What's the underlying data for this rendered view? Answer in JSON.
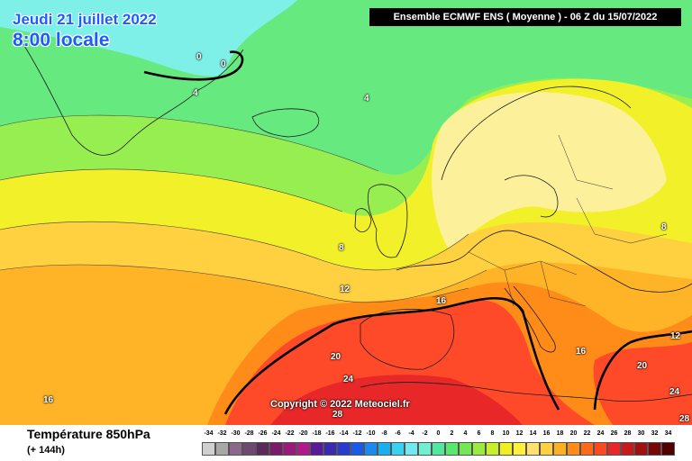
{
  "header": {
    "date_line": "Jeudi 21 juillet 2022",
    "time_line": "8:00 locale",
    "model_run": "Ensemble ECMWF ENS  ( Moyenne )  -  06 Z du 15/07/2022"
  },
  "map": {
    "isotherm_labels": [
      "0",
      "0",
      "4",
      "4",
      "8",
      "8",
      "12",
      "12",
      "16",
      "16",
      "16",
      "20",
      "20",
      "24",
      "24",
      "28",
      "28"
    ],
    "copyright": "Copyright © 2022 Meteociel.fr"
  },
  "footer": {
    "variable": "Température 850hPa",
    "lead_time": "(+ 144h)"
  },
  "legend": {
    "ticks": [
      "-34",
      "-32",
      "-30",
      "-28",
      "-26",
      "-24",
      "-22",
      "-20",
      "-18",
      "-16",
      "-14",
      "-12",
      "-10",
      "-8",
      "-6",
      "-4",
      "-2",
      "0",
      "2",
      "4",
      "6",
      "8",
      "10",
      "12",
      "14",
      "16",
      "18",
      "20",
      "22",
      "24",
      "26",
      "28",
      "30",
      "32",
      "34"
    ],
    "colors": [
      "#d0d0d0",
      "#a8a8a8",
      "#8a6a8a",
      "#6e4a6e",
      "#5a2a5a",
      "#7a1a6a",
      "#9a1a7a",
      "#b01a8a",
      "#5a1a9a",
      "#3a2ab0",
      "#2a3ad0",
      "#1a5aea",
      "#1a8af0",
      "#1ab0f0",
      "#3ad0f0",
      "#70eaf0",
      "#70f0d0",
      "#50e8a0",
      "#58e870",
      "#70ea50",
      "#9aea40",
      "#c8f028",
      "#eef020",
      "#fff038",
      "#ffe070",
      "#ffd040",
      "#ffb020",
      "#ff8c18",
      "#ff6a18",
      "#ff4820",
      "#e82828",
      "#c81a1a",
      "#a01010",
      "#780808",
      "#500000"
    ]
  },
  "colors": {
    "water_cold": "#7ff0e8",
    "green": "#66ea80",
    "light_green": "#96ee50",
    "yellow": "#f2f028",
    "pale_yellow": "#fdf09a",
    "orange": "#ffb428",
    "red": "#ff4a2a"
  }
}
